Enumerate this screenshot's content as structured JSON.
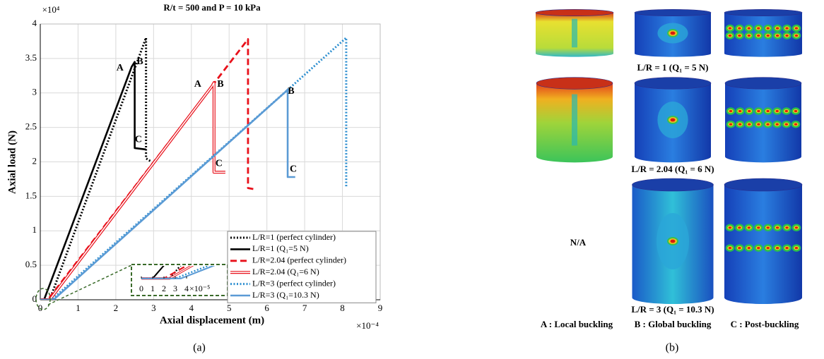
{
  "chart_data": {
    "type": "line",
    "title": "R/t = 500 and P = 10 kPa",
    "x_label": "Axial displacement (m)",
    "y_label": "Axial load (N)",
    "x_multiplier": "×10⁻⁴",
    "y_multiplier": "×10⁴",
    "xlim": [
      0,
      9
    ],
    "ylim": [
      0,
      4
    ],
    "xticks": [
      0,
      1,
      2,
      3,
      4,
      5,
      6,
      7,
      8,
      9
    ],
    "yticks": [
      0,
      0.5,
      1,
      1.5,
      2,
      2.5,
      3,
      3.5,
      4
    ],
    "grid": true,
    "legend": "lower right",
    "series": [
      {
        "name": "L/R=1 (perfect cylinder)",
        "color": "#000000",
        "style": "dotted",
        "x": [
          0,
          0.25,
          2.8,
          2.8,
          2.95
        ],
        "values": [
          0,
          0,
          3.8,
          2.05,
          2.0
        ]
      },
      {
        "name": "L/R=1 (Q₁=5 N)",
        "color": "#000000",
        "style": "solid",
        "x": [
          0,
          0.1,
          2.42,
          2.5,
          2.5,
          2.8
        ],
        "values": [
          0,
          0,
          3.38,
          3.45,
          2.2,
          2.18
        ]
      },
      {
        "name": "L/R=2.04 (perfect cylinder)",
        "color": "#e8101a",
        "style": "dashed",
        "x": [
          0,
          0.2,
          5.5,
          5.5,
          5.7
        ],
        "values": [
          0,
          0,
          3.78,
          1.62,
          1.6
        ]
      },
      {
        "name": "L/R=2.04 (Q₁=6 N)",
        "color": "#e8101a",
        "style": "double",
        "x": [
          0,
          0.25,
          4.55,
          4.6,
          4.6,
          4.9
        ],
        "values": [
          0,
          0,
          3.1,
          3.15,
          1.85,
          1.85
        ]
      },
      {
        "name": "L/R=3 (perfect cylinder)",
        "color": "#2e8fd0",
        "style": "dotted",
        "x": [
          0,
          0.3,
          8.1,
          8.1
        ],
        "values": [
          0,
          0,
          3.8,
          1.62
        ]
      },
      {
        "name": "L/R=3 (Q₁=10.3 N)",
        "color": "#5b9bd5",
        "style": "solid",
        "x": [
          0,
          0.35,
          6.5,
          6.55,
          6.55,
          6.75
        ],
        "values": [
          0,
          0,
          3.02,
          3.05,
          1.78,
          1.78
        ]
      }
    ],
    "annotations": [
      {
        "text": "A",
        "x": 2.11,
        "y": 3.36
      },
      {
        "text": "B",
        "x": 2.64,
        "y": 3.45
      },
      {
        "text": "C",
        "x": 2.6,
        "y": 2.32
      },
      {
        "text": "A",
        "x": 4.17,
        "y": 3.12
      },
      {
        "text": "B",
        "x": 4.77,
        "y": 3.12
      },
      {
        "text": "C",
        "x": 4.73,
        "y": 1.97
      },
      {
        "text": "B",
        "x": 6.64,
        "y": 3.02
      },
      {
        "text": "C",
        "x": 6.7,
        "y": 1.89
      }
    ],
    "inset": {
      "xlim": [
        -0.075,
        0.75
      ],
      "ylim": [
        -0.08,
        0.14
      ],
      "xticks": [
        0,
        {
          "value": 0.1,
          "label": "1"
        },
        {
          "value": 0.2,
          "label": "2"
        },
        {
          "value": 0.3,
          "label": "3"
        },
        {
          "value": 0.4,
          "label": "4"
        }
      ],
      "x_multiplier": "×10⁻⁵"
    },
    "caption": "(a)"
  },
  "figure_b": {
    "row_labels": [
      "L/R = 1 (Q₁ = 5 N)",
      "L/R = 2.04 (Q₁ = 6 N)",
      "L/R = 3 (Q₁ = 10.3 N)"
    ],
    "missing_label": "N/A",
    "legend": [
      "A : Local buckling",
      "B : Global buckling",
      "C : Post-buckling"
    ],
    "caption": "(b)"
  }
}
